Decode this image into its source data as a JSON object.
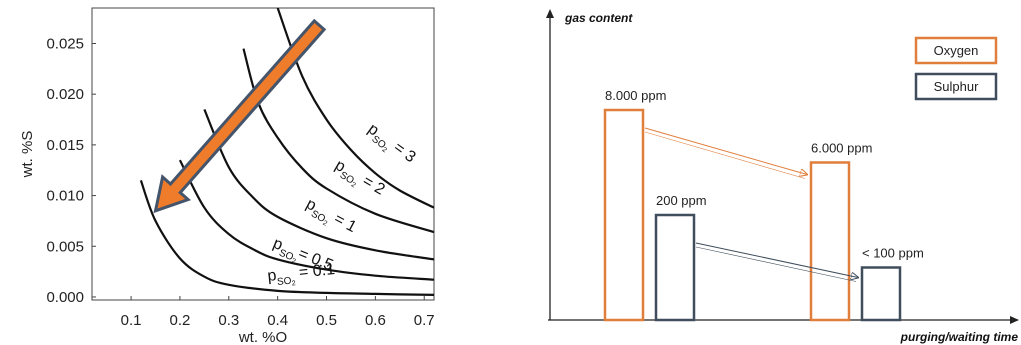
{
  "colors": {
    "oxygen": "#e07f3c",
    "sulphur": "#3f4d5c",
    "arrow_fill": "#ef7c2b",
    "arrow_edge": "#44546a",
    "curve": "#111111"
  },
  "chart_data": [
    {
      "type": "line",
      "xlabel": "wt. %O",
      "ylabel": "wt. %S",
      "xlim": [
        0.02,
        0.72
      ],
      "ylim": [
        -0.0003,
        0.0285
      ],
      "x_ticks": [
        "0.1",
        "0.2",
        "0.3",
        "0.4",
        "0.5",
        "0.6",
        "0.7"
      ],
      "y_ticks": [
        "0.000",
        "0.005",
        "0.010",
        "0.015",
        "0.020",
        "0.025"
      ],
      "grid": false,
      "series": [
        {
          "label_main": "p",
          "label_sub": "SO",
          "label_sub2": "2",
          "label_eq": " = 0.1",
          "x": [
            0.12,
            0.15,
            0.2,
            0.25,
            0.3,
            0.4,
            0.5,
            0.6,
            0.72
          ],
          "y": [
            0.0115,
            0.0075,
            0.0038,
            0.002,
            0.0012,
            0.0006,
            0.0004,
            0.0003,
            0.0002
          ]
        },
        {
          "label_main": "p",
          "label_sub": "SO",
          "label_sub2": "2",
          "label_eq": "= 0.5",
          "x": [
            0.2,
            0.25,
            0.3,
            0.35,
            0.4,
            0.5,
            0.6,
            0.72
          ],
          "y": [
            0.0135,
            0.0088,
            0.0062,
            0.0047,
            0.0037,
            0.0027,
            0.0021,
            0.0017
          ]
        },
        {
          "label_main": "p",
          "label_sub": "SO",
          "label_sub2": "2",
          "label_eq": " = 1",
          "x": [
            0.25,
            0.3,
            0.35,
            0.4,
            0.5,
            0.6,
            0.72
          ],
          "y": [
            0.0185,
            0.0128,
            0.0098,
            0.0079,
            0.0058,
            0.0046,
            0.0037
          ]
        },
        {
          "label_main": "p",
          "label_sub": "SO",
          "label_sub2": "2",
          "label_eq": " = 2",
          "x": [
            0.33,
            0.36,
            0.4,
            0.45,
            0.5,
            0.6,
            0.72
          ],
          "y": [
            0.0245,
            0.0192,
            0.0157,
            0.0127,
            0.0107,
            0.0082,
            0.0064
          ]
        },
        {
          "label_main": "p",
          "label_sub": "SO",
          "label_sub2": "2",
          "label_eq": " = 3",
          "x": [
            0.4,
            0.45,
            0.5,
            0.55,
            0.6,
            0.65,
            0.72
          ],
          "y": [
            0.0285,
            0.0218,
            0.0175,
            0.0145,
            0.0122,
            0.0105,
            0.0088
          ]
        }
      ],
      "annotation_arrow": {
        "from": [
          0.485,
          0.0268
        ],
        "to": [
          0.15,
          0.0085
        ]
      }
    },
    {
      "type": "bar",
      "ylabel": "gas content",
      "xlabel": "purging/waiting time",
      "series": [
        {
          "name": "Oxygen",
          "values": [
            8000,
            6000
          ],
          "labels": [
            "8.000 ppm",
            "6.000 ppm"
          ]
        },
        {
          "name": "Sulphur",
          "values": [
            200,
            100
          ],
          "labels": [
            "200 ppm",
            "< 100 ppm"
          ]
        }
      ],
      "legend": [
        "Oxygen",
        "Sulphur"
      ],
      "legend_position": "top-right"
    }
  ]
}
